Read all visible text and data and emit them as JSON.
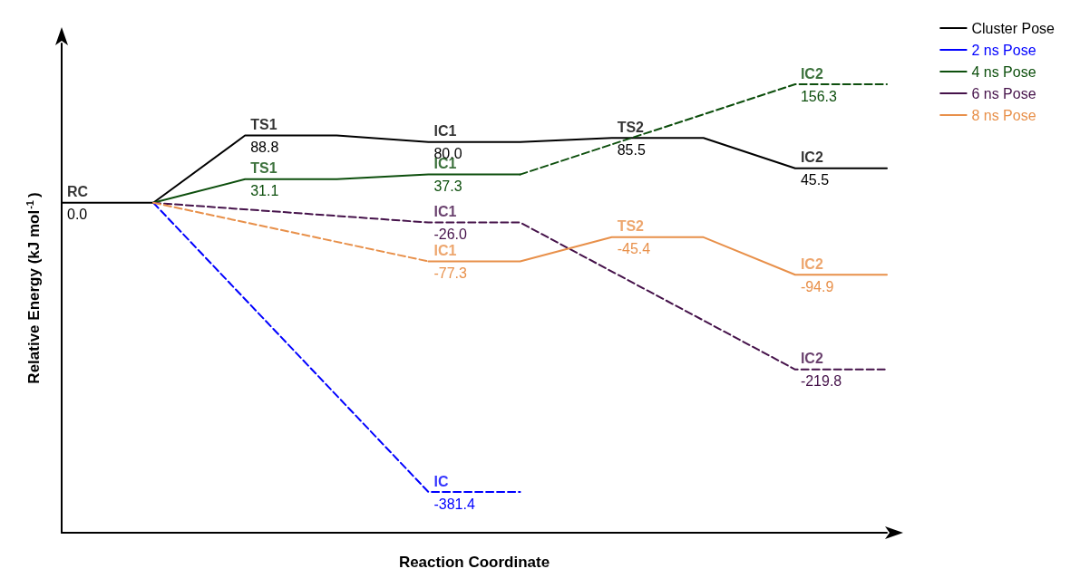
{
  "chart_data": {
    "type": "line",
    "xlabel": "Reaction Coordinate",
    "ylabel": "Relative Energy (kJ mol$^{-1}$)",
    "tick_labels": false,
    "grid": false,
    "legend": "top right",
    "marker": "none",
    "categories": [
      null,
      null,
      null,
      null,
      null,
      null,
      null,
      null,
      null,
      null
    ],
    "series": [
      {
        "name": "Cluster Pose",
        "color": "#000000",
        "line_style": "solid",
        "values": [
          0.0,
          0.0,
          88.8,
          88.8,
          80.0,
          80.0,
          85.5,
          85.5,
          45.5,
          45.5
        ],
        "value_labels": [
          "0.0",
          null,
          "88.8",
          null,
          "80.0",
          null,
          "85.5",
          null,
          "45.5",
          null
        ]
      },
      {
        "name": "2 ns Pose",
        "color": "#0000ff",
        "line_style": "dashed",
        "values": [
          null,
          0.0,
          null,
          null,
          -381.4,
          -381.4,
          null,
          null,
          null,
          null
        ],
        "value_labels": [
          null,
          null,
          null,
          null,
          "-381.4",
          null,
          null,
          null,
          null,
          null
        ]
      },
      {
        "name": "4 ns Pose",
        "color": "#0d4f0d",
        "line_style": "solid",
        "values": [
          null,
          0.0,
          31.1,
          31.1,
          37.3,
          37.3,
          null,
          null,
          null,
          null
        ],
        "value_labels": [
          null,
          null,
          "31.1",
          null,
          "37.3",
          null,
          null,
          null,
          null,
          null
        ]
      },
      {
        "color": "#0d4f0d",
        "line_style": "dashed",
        "values": [
          null,
          null,
          null,
          null,
          null,
          37.3,
          null,
          null,
          156.3,
          156.3
        ],
        "value_labels": [
          null,
          null,
          null,
          null,
          null,
          null,
          null,
          null,
          "156.3",
          null
        ]
      },
      {
        "name": "6 ns Pose",
        "color": "#45124a",
        "line_style": "dashed",
        "values": [
          null,
          0.0,
          null,
          null,
          -26.0,
          -26.0,
          null,
          null,
          -219.8,
          -219.8
        ],
        "value_labels": [
          null,
          null,
          null,
          null,
          "-26.0",
          null,
          null,
          null,
          "-219.8",
          null
        ]
      },
      {
        "name": "8 ns Pose",
        "color": "#e8904a",
        "line_style": "solid",
        "values": [
          null,
          null,
          null,
          null,
          -77.3,
          -77.3,
          -45.4,
          -45.4,
          -94.9,
          -94.9
        ],
        "value_labels": [
          null,
          null,
          null,
          null,
          "-77.3",
          null,
          "-45.4",
          null,
          "-94.9",
          null
        ]
      },
      {
        "color": "#e8904a",
        "line_style": "dashed",
        "values": [
          null,
          0.0,
          null,
          null,
          -77.3,
          null,
          null,
          null,
          null,
          null
        ]
      }
    ],
    "annotations": [
      {
        "text": "RC",
        "y": 0.0
      },
      {
        "text": "TS1",
        "y": 88.8
      },
      {
        "text": "IC1",
        "y": 80.0
      },
      {
        "text": "TS2",
        "y": 85.5
      },
      {
        "text": "IC2",
        "y": 45.5
      },
      {
        "text": "IC",
        "y": -381.4
      },
      {
        "text": "TS1",
        "y": 31.1
      },
      {
        "text": "IC1",
        "y": 37.3
      },
      {
        "text": "IC2",
        "y": 156.3
      },
      {
        "text": "IC1",
        "y": -26.0
      },
      {
        "text": "IC2",
        "y": -219.8
      },
      {
        "text": "IC1",
        "y": -77.3
      },
      {
        "text": "TS2",
        "y": -45.4
      },
      {
        "text": "IC2",
        "y": -94.9
      }
    ]
  }
}
